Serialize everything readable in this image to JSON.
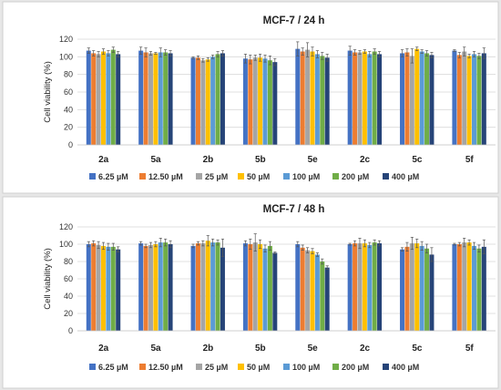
{
  "chart_data": [
    {
      "type": "bar",
      "title": "MCF-7 / 24 h",
      "xlabel": "",
      "ylabel": "Cell viability (%)",
      "ylim": [
        0,
        120
      ],
      "yticks": [
        0,
        20,
        40,
        60,
        80,
        100,
        120
      ],
      "grid": true,
      "legend_position": "bottom",
      "categories": [
        "2a",
        "5a",
        "2b",
        "5b",
        "5e",
        "2c",
        "5c",
        "5f"
      ],
      "series": [
        {
          "name": "6.25 µM",
          "color": "#4472c4",
          "values": [
            107,
            107,
            99,
            98,
            109,
            107,
            104,
            107
          ],
          "errors": [
            3,
            4,
            1,
            5,
            8,
            5,
            4,
            1
          ]
        },
        {
          "name": "12.50 µM",
          "color": "#ed7d31",
          "values": [
            104,
            105,
            99,
            97,
            106,
            105,
            105,
            102
          ],
          "errors": [
            3,
            5,
            2,
            5,
            4,
            3,
            4,
            3
          ]
        },
        {
          "name": "25 µM",
          "color": "#a5a5a5",
          "values": [
            103,
            104,
            96,
            99,
            108,
            105,
            101,
            106
          ],
          "errors": [
            3,
            2,
            2,
            3,
            8,
            2,
            8,
            5
          ]
        },
        {
          "name": "50 µM",
          "color": "#ffc000",
          "values": [
            106,
            104,
            97,
            99,
            106,
            106,
            109,
            101
          ],
          "errors": [
            3,
            1,
            2,
            4,
            5,
            2,
            2,
            2
          ]
        },
        {
          "name": "100 µM",
          "color": "#5b9bd5",
          "values": [
            104,
            105,
            100,
            98,
            103,
            103,
            106,
            103
          ],
          "errors": [
            3,
            5,
            2,
            4,
            4,
            3,
            2,
            3
          ]
        },
        {
          "name": "200 µM",
          "color": "#70ad47",
          "values": [
            108,
            105,
            103,
            96,
            101,
            106,
            104,
            101
          ],
          "errors": [
            3,
            3,
            3,
            5,
            4,
            3,
            3,
            3
          ]
        },
        {
          "name": "400 µM",
          "color": "#264478",
          "values": [
            103,
            104,
            104,
            94,
            99,
            103,
            102,
            104
          ],
          "errors": [
            3,
            3,
            3,
            4,
            4,
            3,
            3,
            6
          ]
        }
      ]
    },
    {
      "type": "bar",
      "title": "MCF-7 / 48 h",
      "xlabel": "",
      "ylabel": "Cell viability (%)",
      "ylim": [
        0,
        120
      ],
      "yticks": [
        0,
        20,
        40,
        60,
        80,
        100,
        120
      ],
      "grid": true,
      "legend_position": "bottom",
      "categories": [
        "2a",
        "5a",
        "2b",
        "5b",
        "5e",
        "2c",
        "5c",
        "5f"
      ],
      "series": [
        {
          "name": "6.25 µM",
          "color": "#4472c4",
          "values": [
            100,
            101,
            98,
            101,
            100,
            100,
            94,
            100
          ],
          "errors": [
            3,
            2,
            2,
            3,
            3,
            1,
            2,
            1
          ]
        },
        {
          "name": "12.50 µM",
          "color": "#ed7d31",
          "values": [
            101,
            98,
            101,
            100,
            96,
            101,
            97,
            100
          ],
          "errors": [
            3,
            2,
            2,
            6,
            3,
            3,
            5,
            2
          ]
        },
        {
          "name": "25 µM",
          "color": "#a5a5a5",
          "values": [
            99,
            99,
            101,
            102,
            93,
            101,
            101,
            102
          ],
          "errors": [
            4,
            3,
            3,
            10,
            3,
            6,
            7,
            5
          ]
        },
        {
          "name": "50 µM",
          "color": "#ffc000",
          "values": [
            98,
            100,
            104,
            100,
            92,
            101,
            101,
            102
          ],
          "errors": [
            4,
            3,
            6,
            5,
            3,
            4,
            5,
            3
          ]
        },
        {
          "name": "100 µM",
          "color": "#5b9bd5",
          "values": [
            97,
            102,
            102,
            95,
            88,
            99,
            98,
            98
          ],
          "errors": [
            4,
            5,
            4,
            4,
            2,
            3,
            5,
            4
          ]
        },
        {
          "name": "200 µM",
          "color": "#70ad47",
          "values": [
            97,
            102,
            102,
            98,
            80,
            102,
            95,
            95
          ],
          "errors": [
            4,
            4,
            3,
            5,
            3,
            3,
            5,
            4
          ]
        },
        {
          "name": "400 µM",
          "color": "#264478",
          "values": [
            94,
            100,
            96,
            90,
            73,
            101,
            88,
            97
          ],
          "errors": [
            3,
            4,
            10,
            1,
            2,
            3,
            8,
            8
          ]
        }
      ]
    }
  ]
}
